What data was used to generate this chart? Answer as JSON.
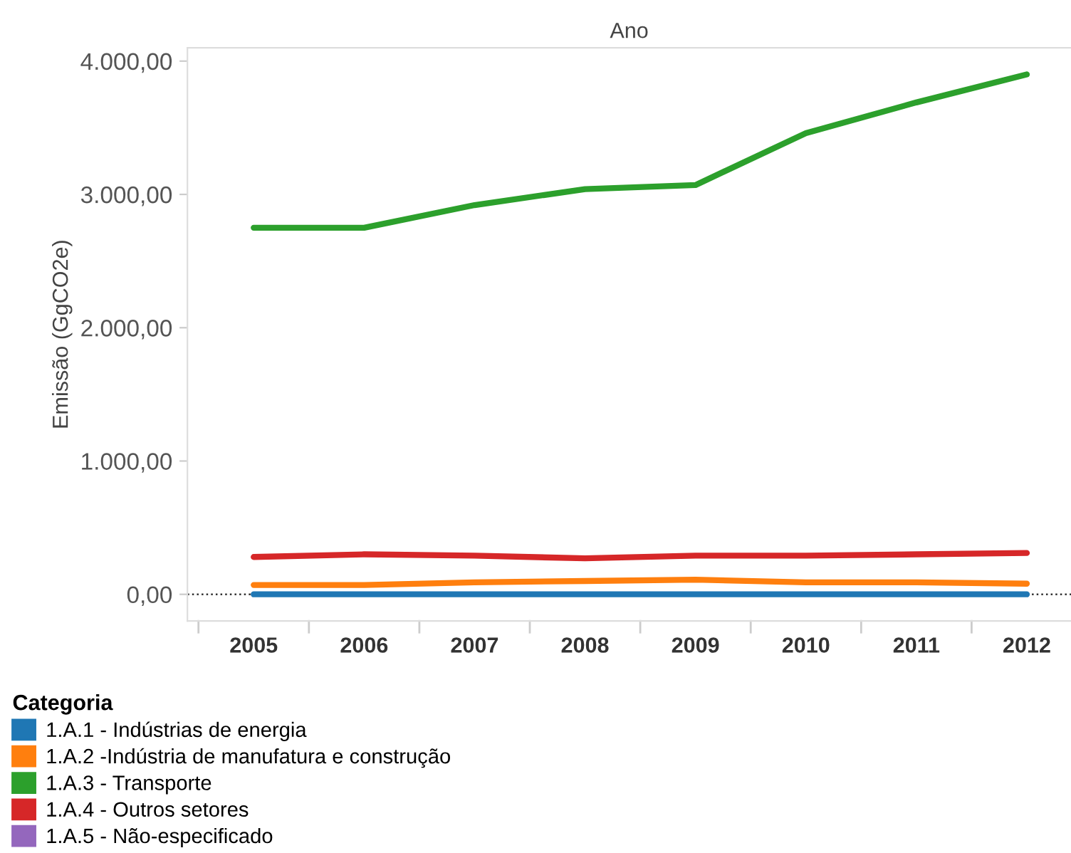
{
  "chart_data": {
    "type": "line",
    "title": "Ano",
    "ylabel": "Emissão (GgCO2e)",
    "legend_title": "Categoria",
    "legend": "bottom",
    "categories": [
      "2005",
      "2006",
      "2007",
      "2008",
      "2009",
      "2010",
      "2011",
      "2012"
    ],
    "ylim": [
      -200,
      4100
    ],
    "yticks": [
      {
        "value": 0,
        "label": "0,00"
      },
      {
        "value": 1000,
        "label": "1.000,00"
      },
      {
        "value": 2000,
        "label": "2.000,00"
      },
      {
        "value": 3000,
        "label": "3.000,00"
      },
      {
        "value": 4000,
        "label": "4.000,00"
      }
    ],
    "ref_lines": [
      {
        "axis": "y",
        "value": 0,
        "color": "#333333",
        "line_style": "dotted"
      }
    ],
    "series": [
      {
        "name": "1.A.1 - Indústrias de energia",
        "color": "#1f77b4",
        "values": [
          0,
          0,
          0,
          0,
          0,
          0,
          0,
          0
        ]
      },
      {
        "name": "1.A.2 -Indústria de manufatura e construção",
        "color": "#ff7f0e",
        "values": [
          70,
          70,
          90,
          100,
          110,
          90,
          90,
          80
        ]
      },
      {
        "name": "1.A.3 - Transporte",
        "color": "#2ca02c",
        "values": [
          2750,
          2750,
          2920,
          3040,
          3070,
          3460,
          3690,
          3900
        ]
      },
      {
        "name": "1.A.4 - Outros setores",
        "color": "#d62728",
        "values": [
          280,
          300,
          290,
          270,
          290,
          290,
          300,
          310
        ]
      },
      {
        "name": "1.A.5 - Não-especificado",
        "color": "#9467bd",
        "values": [
          null,
          null,
          null,
          null,
          null,
          null,
          null,
          null
        ]
      }
    ]
  }
}
